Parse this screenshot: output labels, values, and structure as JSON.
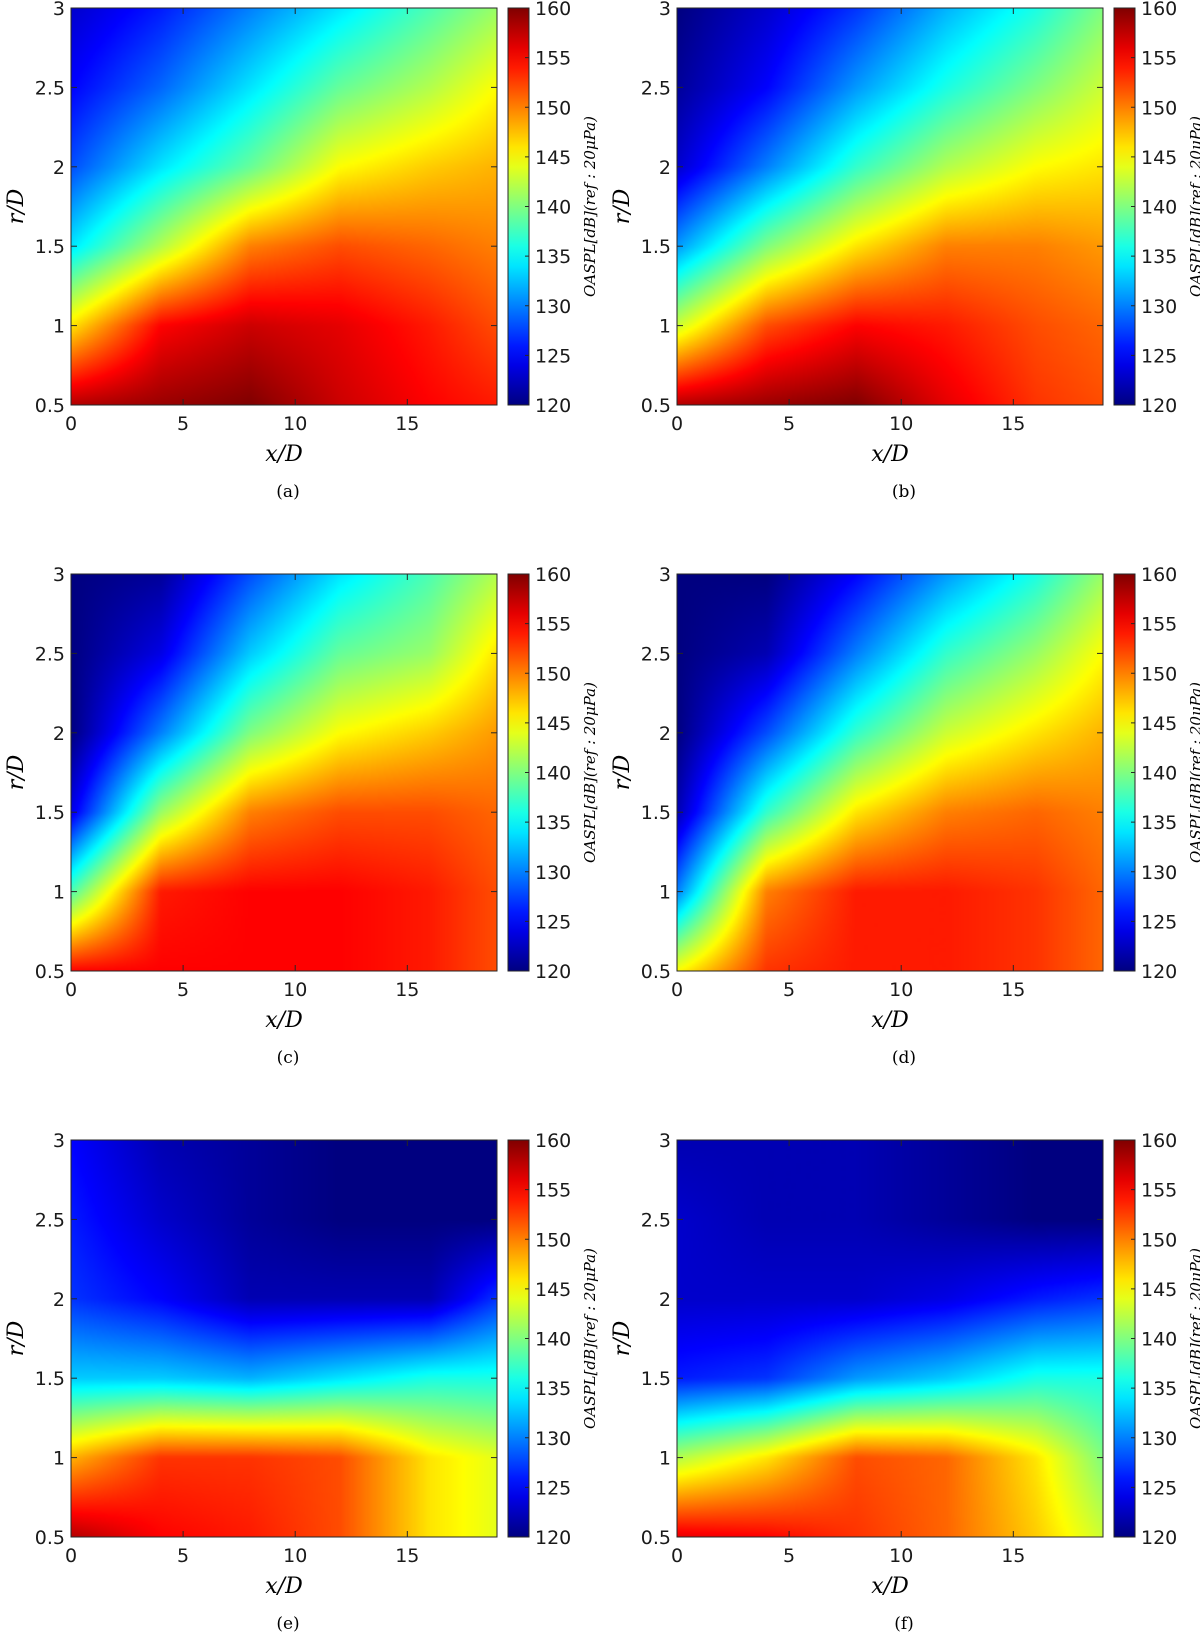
{
  "chart_data": [
    {
      "type": "heatmap",
      "caption": "(a)",
      "xlabel": "x/D",
      "ylabel": "r/D",
      "colorbar_label": "OASPL[dB](ref : 20μPa)",
      "xlim": [
        0,
        19
      ],
      "ylim": [
        0.5,
        3
      ],
      "clim": [
        120,
        160
      ],
      "colormap": "jet",
      "x_ticks": [
        "0",
        "5",
        "10",
        "15"
      ],
      "y_ticks": [
        "0.5",
        "1",
        "1.5",
        "2",
        "2.5",
        "3"
      ],
      "colorbar_ticks": [
        "120",
        "125",
        "130",
        "135",
        "140",
        "145",
        "150",
        "155",
        "160"
      ],
      "x": [
        0,
        4,
        8,
        12,
        16,
        19
      ],
      "y": [
        0.5,
        1.0,
        1.5,
        2.0,
        2.5,
        3.0
      ],
      "z": [
        [
          158,
          159,
          160,
          157,
          155,
          154
        ],
        [
          146,
          155,
          157,
          156,
          154,
          152
        ],
        [
          134,
          142,
          150,
          152,
          151,
          150
        ],
        [
          128,
          134,
          139,
          145,
          147,
          148
        ],
        [
          125,
          129,
          134,
          139,
          142,
          145
        ],
        [
          123,
          126,
          130,
          134,
          138,
          141
        ]
      ]
    },
    {
      "type": "heatmap",
      "caption": "(b)",
      "xlabel": "x/D",
      "ylabel": "r/D",
      "colorbar_label": "OASPL[dB](ref : 20μPa)",
      "xlim": [
        0,
        19
      ],
      "ylim": [
        0.5,
        3
      ],
      "clim": [
        120,
        160
      ],
      "colormap": "jet",
      "x_ticks": [
        "0",
        "5",
        "10",
        "15"
      ],
      "y_ticks": [
        "0.5",
        "1",
        "1.5",
        "2",
        "2.5",
        "3"
      ],
      "colorbar_ticks": [
        "120",
        "125",
        "130",
        "135",
        "140",
        "145",
        "150",
        "155",
        "160"
      ],
      "x": [
        0,
        4,
        8,
        12,
        16,
        19
      ],
      "y": [
        0.5,
        1.0,
        1.5,
        2.0,
        2.5,
        3.0
      ],
      "z": [
        [
          158,
          159,
          160,
          156,
          153,
          152
        ],
        [
          143,
          152,
          155,
          154,
          152,
          151
        ],
        [
          131,
          140,
          146,
          150,
          150,
          149
        ],
        [
          123,
          130,
          137,
          142,
          145,
          146
        ],
        [
          121,
          125,
          131,
          136,
          140,
          143
        ],
        [
          120,
          123,
          127,
          132,
          136,
          140
        ]
      ]
    },
    {
      "type": "heatmap",
      "caption": "(c)",
      "xlabel": "x/D",
      "ylabel": "r/D",
      "colorbar_label": "OASPL[dB](ref : 20μPa)",
      "xlim": [
        0,
        19
      ],
      "ylim": [
        0.5,
        3
      ],
      "clim": [
        120,
        160
      ],
      "colormap": "jet",
      "x_ticks": [
        "0",
        "5",
        "10",
        "15"
      ],
      "y_ticks": [
        "0.5",
        "1",
        "1.5",
        "2",
        "2.5",
        "3"
      ],
      "colorbar_ticks": [
        "120",
        "125",
        "130",
        "135",
        "140",
        "145",
        "150",
        "155",
        "160"
      ],
      "x": [
        0,
        4,
        8,
        12,
        16,
        19
      ],
      "y": [
        0.5,
        1.0,
        1.5,
        2.0,
        2.5,
        3.0
      ],
      "z": [
        [
          155,
          155,
          155,
          155,
          154,
          152
        ],
        [
          138,
          154,
          155,
          155,
          154,
          152
        ],
        [
          124,
          141,
          150,
          152,
          152,
          151
        ],
        [
          120,
          130,
          140,
          145,
          147,
          149
        ],
        [
          120,
          124,
          133,
          139,
          141,
          146
        ],
        [
          120,
          121,
          128,
          134,
          138,
          142
        ]
      ]
    },
    {
      "type": "heatmap",
      "caption": "(d)",
      "xlabel": "x/D",
      "ylabel": "r/D",
      "colorbar_label": "OASPL[dB](ref : 20μPa)",
      "xlim": [
        0,
        19
      ],
      "ylim": [
        0.5,
        3
      ],
      "clim": [
        120,
        160
      ],
      "colormap": "jet",
      "x_ticks": [
        "0",
        "5",
        "10",
        "15"
      ],
      "y_ticks": [
        "0.5",
        "1",
        "1.5",
        "2",
        "2.5",
        "3"
      ],
      "colorbar_ticks": [
        "120",
        "125",
        "130",
        "135",
        "140",
        "145",
        "150",
        "155",
        "160"
      ],
      "x": [
        0,
        4,
        8,
        12,
        16,
        19
      ],
      "y": [
        0.5,
        1.0,
        1.5,
        2.0,
        2.5,
        3.0
      ],
      "z": [
        [
          145,
          153,
          154,
          154,
          153,
          151
        ],
        [
          130,
          150,
          154,
          154,
          153,
          151
        ],
        [
          122,
          137,
          146,
          150,
          151,
          150
        ],
        [
          120,
          128,
          137,
          143,
          146,
          148
        ],
        [
          120,
          122,
          130,
          137,
          141,
          145
        ],
        [
          120,
          120,
          125,
          131,
          136,
          141
        ]
      ]
    },
    {
      "type": "heatmap",
      "caption": "(e)",
      "xlabel": "x/D",
      "ylabel": "r/D",
      "colorbar_label": "OASPL[dB](ref : 20μPa)",
      "xlim": [
        0,
        19
      ],
      "ylim": [
        0.5,
        3
      ],
      "clim": [
        120,
        160
      ],
      "colormap": "jet",
      "x_ticks": [
        "0",
        "5",
        "10",
        "15"
      ],
      "y_ticks": [
        "0.5",
        "1",
        "1.5",
        "2",
        "2.5",
        "3"
      ],
      "colorbar_ticks": [
        "120",
        "125",
        "130",
        "135",
        "140",
        "145",
        "150",
        "155",
        "160"
      ],
      "x": [
        0,
        4,
        8,
        12,
        16,
        19
      ],
      "y": [
        0.5,
        1.0,
        1.5,
        2.0,
        2.5,
        3.0
      ],
      "z": [
        [
          158,
          155,
          154,
          152,
          146,
          144
        ],
        [
          148,
          153,
          153,
          152,
          146,
          144
        ],
        [
          133,
          133,
          132,
          134,
          136,
          136
        ],
        [
          127,
          125,
          122,
          122,
          122,
          127
        ],
        [
          126,
          123,
          121,
          120,
          120,
          120
        ],
        [
          125,
          122,
          121,
          120,
          120,
          120
        ]
      ]
    },
    {
      "type": "heatmap",
      "caption": "(f)",
      "xlabel": "x/D",
      "ylabel": "r/D",
      "colorbar_label": "OASPL[dB](ref : 20μPa)",
      "xlim": [
        0,
        19
      ],
      "ylim": [
        0.5,
        3
      ],
      "clim": [
        120,
        160
      ],
      "colormap": "jet",
      "x_ticks": [
        "0",
        "5",
        "10",
        "15"
      ],
      "y_ticks": [
        "0.5",
        "1",
        "1.5",
        "2",
        "2.5",
        "3"
      ],
      "colorbar_ticks": [
        "120",
        "125",
        "130",
        "135",
        "140",
        "145",
        "150",
        "155",
        "160"
      ],
      "x": [
        0,
        4,
        8,
        12,
        16,
        19
      ],
      "y": [
        0.5,
        1.0,
        1.5,
        2.0,
        2.5,
        3.0
      ],
      "z": [
        [
          156,
          155,
          153,
          151,
          147,
          143
        ],
        [
          142,
          146,
          152,
          151,
          146,
          140
        ],
        [
          126,
          127,
          131,
          133,
          136,
          136
        ],
        [
          123,
          123,
          123,
          124,
          126,
          127
        ],
        [
          123,
          122,
          122,
          121,
          120,
          120
        ],
        [
          122,
          122,
          122,
          121,
          120,
          120
        ]
      ]
    }
  ]
}
